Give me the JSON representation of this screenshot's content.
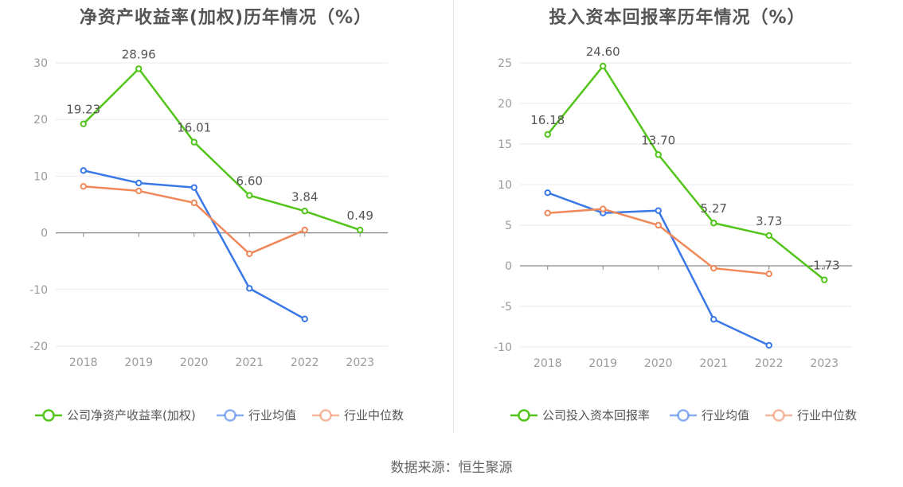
{
  "source": "数据来源：恒生聚源",
  "chart_data": [
    {
      "type": "line",
      "title": "净资产收益率(加权)历年情况（%）",
      "categories": [
        "2018",
        "2019",
        "2020",
        "2021",
        "2022",
        "2023"
      ],
      "ylim": [
        -20,
        30
      ],
      "yticks": [
        30,
        20,
        10,
        0,
        -10,
        -20
      ],
      "grid": true,
      "legend_position": "bottom",
      "series": [
        {
          "name": "公司净资产收益率(加权)",
          "color": "#52c41a",
          "values": [
            19.23,
            28.96,
            16.01,
            6.6,
            3.84,
            0.49
          ],
          "labels": [
            "19.23",
            "28.96",
            "16.01",
            "6.60",
            "3.84",
            "0.49"
          ]
        },
        {
          "name": "行业均值",
          "color": "#3b78e7",
          "values": [
            11.0,
            8.8,
            8.0,
            -9.8,
            -15.2,
            null
          ]
        },
        {
          "name": "行业中位数",
          "color": "#f0885a",
          "values": [
            8.2,
            7.4,
            5.3,
            -3.7,
            0.5,
            null
          ]
        }
      ]
    },
    {
      "type": "line",
      "title": "投入资本回报率历年情况（%）",
      "categories": [
        "2018",
        "2019",
        "2020",
        "2021",
        "2022",
        "2023"
      ],
      "ylim": [
        -10,
        25
      ],
      "yticks": [
        25,
        20,
        15,
        10,
        5,
        0,
        -5,
        -10
      ],
      "grid": true,
      "legend_position": "bottom",
      "series": [
        {
          "name": "公司投入资本回报率",
          "color": "#52c41a",
          "values": [
            16.18,
            24.6,
            13.7,
            5.27,
            3.73,
            -1.73
          ],
          "labels": [
            "16.18",
            "24.60",
            "13.70",
            "5.27",
            "3.73",
            "-1.73"
          ]
        },
        {
          "name": "行业均值",
          "color": "#3b78e7",
          "values": [
            9.0,
            6.5,
            6.8,
            -6.6,
            -9.8,
            null
          ]
        },
        {
          "name": "行业中位数",
          "color": "#f0885a",
          "values": [
            6.5,
            7.0,
            5.0,
            -0.3,
            -1.0,
            null
          ]
        }
      ]
    }
  ]
}
